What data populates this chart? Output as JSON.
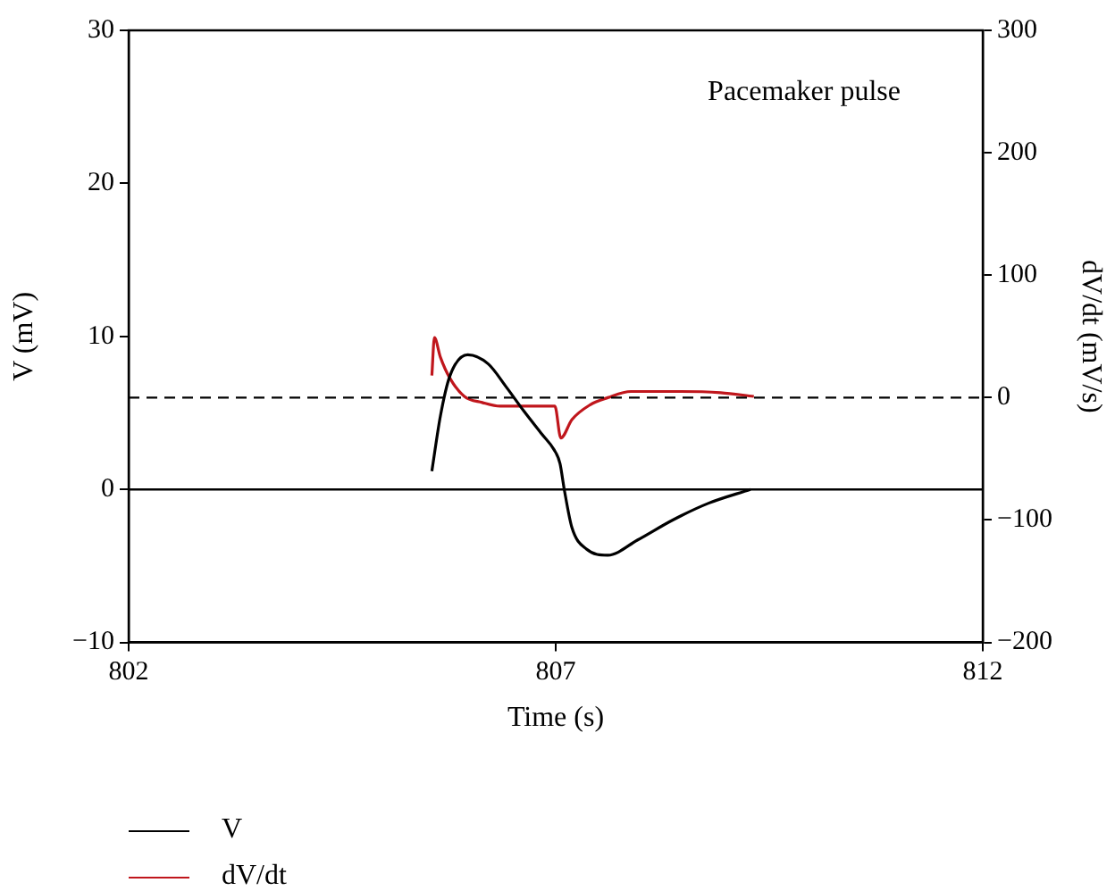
{
  "chart_data": {
    "type": "line",
    "xlabel": "Time (s)",
    "ylabel": "V (mV)",
    "y2label": "dV/dt (mV/s)",
    "xlim": [
      802,
      812
    ],
    "xticks": [
      802,
      807,
      812
    ],
    "ylim": [
      -10,
      30
    ],
    "yticks": [
      -10,
      0,
      10,
      20,
      30
    ],
    "y2lim": [
      -200,
      300
    ],
    "y2ticks": [
      -200,
      -100,
      0,
      100,
      200,
      300
    ],
    "annotations": [
      "Pacemaker pulse"
    ],
    "ref_lines": [
      {
        "axis": "y",
        "value": 0,
        "color": "#000000",
        "line_style": "solid"
      },
      {
        "axis": "y2",
        "value": 0,
        "color": "#000000",
        "line_style": "dashed"
      }
    ],
    "grid": false,
    "legend": "bottom left",
    "marker": "none",
    "series": [
      {
        "name": "V",
        "color": "#000000",
        "x": [
          805.55,
          805.65,
          805.76,
          805.97,
          806.21,
          806.42,
          806.63,
          806.84,
          806.98,
          807.05,
          807.1,
          807.19,
          807.36,
          807.61,
          807.96,
          808.37,
          808.79,
          809.28
        ],
        "values": [
          1.2,
          4.8,
          7.4,
          8.8,
          8.2,
          6.7,
          5.1,
          3.6,
          2.6,
          1.7,
          0,
          -2.5,
          -3.9,
          -4.3,
          -3.3,
          -2,
          -0.9,
          0
        ]
      },
      {
        "name": "dV/dt",
        "color": "#c0161c",
        "axis": "y2",
        "x": [
          805.55,
          805.58,
          805.65,
          805.76,
          805.93,
          806.14,
          806.35,
          806.7,
          806.99,
          807.06,
          807.19,
          807.4,
          807.61,
          807.88,
          808.44,
          808.93,
          809.32
        ],
        "values": [
          18,
          49,
          33,
          16,
          1,
          -4,
          -7,
          -7,
          -7,
          -33,
          -18,
          -6,
          0,
          5,
          5,
          4,
          1
        ]
      }
    ]
  }
}
